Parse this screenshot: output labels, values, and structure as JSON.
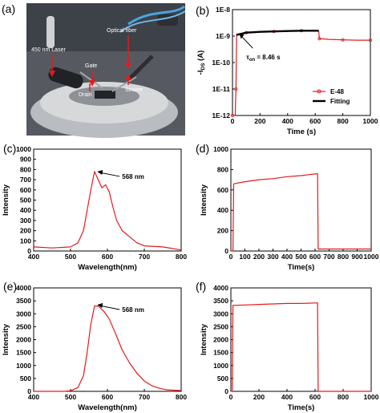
{
  "figure": {
    "colors": {
      "red": "#e41a1c",
      "black": "#000000"
    }
  },
  "photo": {
    "letter": "(a)",
    "labels": {
      "optical_fiber": "Optical fiber",
      "laser": "450 nm Laser",
      "gate": "Gate",
      "drain": "Drain",
      "source": "Source"
    }
  },
  "chart_data": [
    {
      "id": "b",
      "letter": "(b)",
      "type": "line",
      "xlabel": "Time (s)",
      "ylabel": "-I",
      "ylabel_sub": "DS",
      "ylabel_unit": " (A)",
      "xlim": [
        0,
        1000
      ],
      "ylim": [
        1e-12,
        1e-08
      ],
      "yscale": "log",
      "xticks": [
        "0",
        "200",
        "400",
        "600",
        "800",
        "1000"
      ],
      "yticks": [
        "1E-12",
        "1E-11",
        "1E-10",
        "1E-9",
        "1E-8"
      ],
      "legend": {
        "placement": "bottom-right",
        "entries": [
          "E-48",
          "Fitting"
        ]
      },
      "annotation": {
        "prefix": "τ",
        "sub": "on",
        "value": " = 8.46 s"
      },
      "series": [
        {
          "name": "E-48",
          "color": "#e41a1c",
          "points": [
            [
              0,
              1e-12
            ],
            [
              20,
              1e-12
            ],
            [
              25,
              1e-11
            ],
            [
              30,
              1.1e-09
            ],
            [
              100,
              1.35e-09
            ],
            [
              200,
              1.45e-09
            ],
            [
              300,
              1.5e-09
            ],
            [
              400,
              1.55e-09
            ],
            [
              500,
              1.6e-09
            ],
            [
              625,
              1.6e-09
            ],
            [
              630,
              8e-10
            ],
            [
              700,
              7.5e-10
            ],
            [
              800,
              7.2e-10
            ],
            [
              900,
              7e-10
            ],
            [
              1000,
              7e-10
            ]
          ]
        },
        {
          "name": "Fitting",
          "color": "#000000",
          "points": [
            [
              28,
              1.1e-09
            ],
            [
              100,
              1.35e-09
            ],
            [
              200,
              1.45e-09
            ],
            [
              300,
              1.5e-09
            ],
            [
              400,
              1.55e-09
            ],
            [
              500,
              1.6e-09
            ],
            [
              625,
              1.6e-09
            ]
          ]
        }
      ]
    },
    {
      "id": "c",
      "letter": "(c)",
      "type": "line",
      "xlabel": "Wavelength(nm)",
      "ylabel": "Intensity",
      "xlim": [
        400,
        800
      ],
      "ylim": [
        0,
        1000
      ],
      "xticks": [
        "400",
        "500",
        "600",
        "700",
        "800"
      ],
      "yticks": [
        "0",
        "100",
        "200",
        "300",
        "400",
        "500",
        "600",
        "700",
        "800",
        "900",
        "1000"
      ],
      "annotation": {
        "text": "568 nm",
        "x": 568,
        "y": 780
      },
      "series": [
        {
          "color": "#e41a1c",
          "points": [
            [
              400,
              40
            ],
            [
              450,
              30
            ],
            [
              500,
              40
            ],
            [
              520,
              80
            ],
            [
              535,
              200
            ],
            [
              545,
              400
            ],
            [
              555,
              600
            ],
            [
              565,
              780
            ],
            [
              575,
              700
            ],
            [
              585,
              620
            ],
            [
              595,
              650
            ],
            [
              605,
              580
            ],
            [
              615,
              430
            ],
            [
              625,
              300
            ],
            [
              640,
              200
            ],
            [
              660,
              140
            ],
            [
              680,
              80
            ],
            [
              700,
              50
            ],
            [
              750,
              40
            ],
            [
              800,
              10
            ]
          ]
        }
      ]
    },
    {
      "id": "d",
      "letter": "(d)",
      "type": "line",
      "xlabel": "Time(s)",
      "ylabel": "Intensity",
      "xlim": [
        0,
        1000
      ],
      "ylim": [
        0,
        1000
      ],
      "xticks": [
        "0",
        "100",
        "200",
        "300",
        "400",
        "500",
        "600",
        "700",
        "800",
        "900",
        "1000"
      ],
      "yticks": [
        "0",
        "200",
        "400",
        "600",
        "800",
        "1000"
      ],
      "series": [
        {
          "color": "#e41a1c",
          "points": [
            [
              0,
              0
            ],
            [
              15,
              0
            ],
            [
              20,
              660
            ],
            [
              100,
              680
            ],
            [
              200,
              700
            ],
            [
              300,
              710
            ],
            [
              400,
              730
            ],
            [
              500,
              740
            ],
            [
              618,
              760
            ],
            [
              622,
              20
            ],
            [
              700,
              20
            ],
            [
              800,
              20
            ],
            [
              900,
              20
            ],
            [
              1000,
              20
            ]
          ]
        }
      ]
    },
    {
      "id": "e",
      "letter": "(e)",
      "type": "line",
      "xlabel": "Wavelength(nm)",
      "ylabel": "Intensity",
      "xlim": [
        400,
        800
      ],
      "ylim": [
        0,
        4000
      ],
      "xticks": [
        "400",
        "500",
        "600",
        "700",
        "800"
      ],
      "yticks": [
        "0",
        "500",
        "1000",
        "1500",
        "2000",
        "2500",
        "3000",
        "3500",
        "4000"
      ],
      "annotation": {
        "text": "568 nm",
        "x": 568,
        "y": 3350
      },
      "series": [
        {
          "color": "#e41a1c",
          "points": [
            [
              400,
              0
            ],
            [
              480,
              0
            ],
            [
              500,
              20
            ],
            [
              520,
              150
            ],
            [
              535,
              600
            ],
            [
              545,
              1500
            ],
            [
              555,
              2600
            ],
            [
              565,
              3300
            ],
            [
              575,
              3300
            ],
            [
              590,
              3100
            ],
            [
              605,
              2800
            ],
            [
              620,
              2300
            ],
            [
              640,
              1600
            ],
            [
              660,
              1100
            ],
            [
              680,
              700
            ],
            [
              700,
              400
            ],
            [
              720,
              220
            ],
            [
              740,
              120
            ],
            [
              760,
              60
            ],
            [
              800,
              30
            ]
          ]
        }
      ]
    },
    {
      "id": "f",
      "letter": "(f)",
      "type": "line",
      "xlabel": "Time(s)",
      "ylabel": "Intensity",
      "xlim": [
        0,
        1000
      ],
      "ylim": [
        0,
        4000
      ],
      "xticks": [
        "0",
        "200",
        "400",
        "600",
        "800",
        "1000"
      ],
      "yticks": [
        "0",
        "500",
        "1000",
        "1500",
        "2000",
        "2500",
        "3000",
        "3500",
        "4000"
      ],
      "series": [
        {
          "color": "#e41a1c",
          "points": [
            [
              0,
              0
            ],
            [
              10,
              0
            ],
            [
              15,
              3320
            ],
            [
              100,
              3340
            ],
            [
              200,
              3360
            ],
            [
              300,
              3380
            ],
            [
              400,
              3400
            ],
            [
              500,
              3400
            ],
            [
              618,
              3420
            ],
            [
              622,
              0
            ],
            [
              700,
              0
            ],
            [
              1000,
              0
            ]
          ]
        }
      ]
    }
  ]
}
